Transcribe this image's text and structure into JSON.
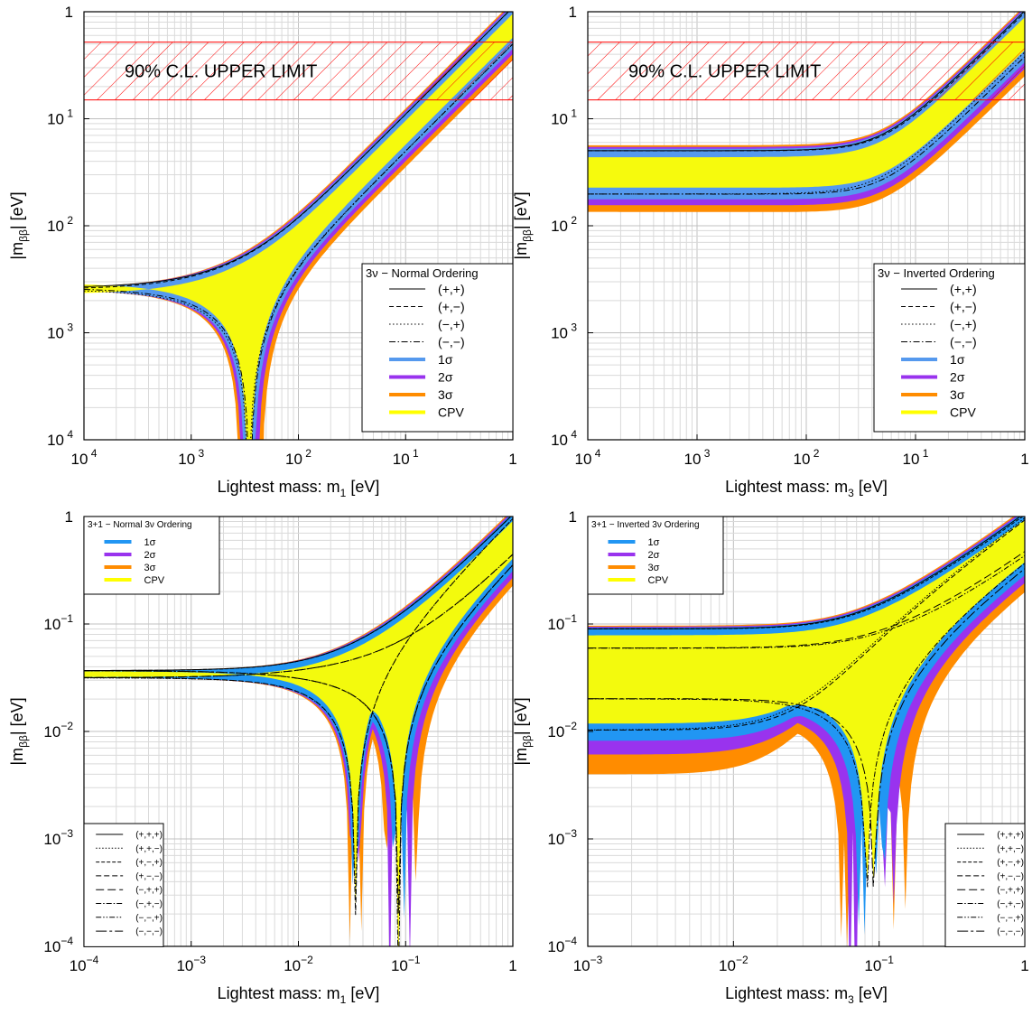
{
  "chart_data": [
    {
      "id": "p1",
      "type": "area",
      "xlabel": "Lightest mass:    m",
      "xsub": "1",
      "xunit": "    [eV]",
      "ylabel": "|m",
      "ysub": "ββ",
      "yunit": "|    [eV]",
      "xscale": "log",
      "yscale": "log",
      "xlim": [
        0.0001,
        1
      ],
      "ylim": [
        0.0001,
        1
      ],
      "xticks": [
        {
          "v": 0.0001,
          "m": "10",
          "e": " 4"
        },
        {
          "v": 0.001,
          "m": "10",
          "e": " 3"
        },
        {
          "v": 0.01,
          "m": "10",
          "e": " 2"
        },
        {
          "v": 0.1,
          "m": "10",
          "e": " 1"
        },
        {
          "v": 1,
          "m": "1",
          "e": ""
        }
      ],
      "yticks": [
        {
          "v": 0.0001,
          "m": "10",
          "e": " 4"
        },
        {
          "v": 0.001,
          "m": "10",
          "e": " 3"
        },
        {
          "v": 0.01,
          "m": "10",
          "e": " 2"
        },
        {
          "v": 0.1,
          "m": "10",
          "e": " 1"
        },
        {
          "v": 1,
          "m": "1",
          "e": ""
        }
      ],
      "limit_band": {
        "label": "90% C.L. UPPER LIMIT",
        "range": [
          0.15,
          0.52
        ]
      },
      "model": {
        "ordering": "normal",
        "a_base": [
          0.8,
          0.3,
          0.0008
        ]
      },
      "legend": {
        "position": "middle-right",
        "title": "3ν − Normal Ordering",
        "lines": [
          {
            "label": "(+,+)",
            "dash": ""
          },
          {
            "label": "(+,−)",
            "dash": "5,3"
          },
          {
            "label": "(−,+)",
            "dash": "1.5,2.5"
          },
          {
            "label": "(−,−)",
            "dash": "7,2.5,1.5,2.5"
          }
        ],
        "bands": [
          {
            "label": "1σ",
            "color": "#5599ee"
          },
          {
            "label": "2σ",
            "color": "#9933ee"
          },
          {
            "label": "3σ",
            "color": "#ff8c00"
          },
          {
            "label": "CPV",
            "color": "#ffff00"
          }
        ]
      }
    },
    {
      "id": "p2",
      "type": "area",
      "xlabel": "Lightest mass:    m",
      "xsub": "3",
      "xunit": "    [eV]",
      "ylabel": "|m",
      "ysub": "ββ",
      "yunit": "|    [eV]",
      "xscale": "log",
      "yscale": "log",
      "xlim": [
        0.0001,
        1
      ],
      "ylim": [
        0.0001,
        1
      ],
      "xticks": [
        {
          "v": 0.0001,
          "m": "10",
          "e": " 4"
        },
        {
          "v": 0.001,
          "m": "10",
          "e": " 3"
        },
        {
          "v": 0.01,
          "m": "10",
          "e": " 2"
        },
        {
          "v": 0.1,
          "m": "10",
          "e": " 1"
        },
        {
          "v": 1,
          "m": "1",
          "e": ""
        }
      ],
      "yticks": [
        {
          "v": 0.0001,
          "m": "10",
          "e": " 4"
        },
        {
          "v": 0.001,
          "m": "10",
          "e": " 3"
        },
        {
          "v": 0.01,
          "m": "10",
          "e": " 2"
        },
        {
          "v": 0.1,
          "m": "10",
          "e": " 1"
        },
        {
          "v": 1,
          "m": "1",
          "e": ""
        }
      ],
      "limit_band": {
        "label": "90% C.L. UPPER LIMIT",
        "range": [
          0.15,
          0.52
        ]
      },
      "model": {
        "ordering": "inverted",
        "a_base": [
          0.7,
          0.3,
          0.02
        ]
      },
      "legend": {
        "position": "middle-right",
        "title": "3ν − Inverted Ordering",
        "lines": [
          {
            "label": "(+,+)",
            "dash": ""
          },
          {
            "label": "(+,−)",
            "dash": "5,3"
          },
          {
            "label": "(−,+)",
            "dash": "1.5,2.5"
          },
          {
            "label": "(−,−)",
            "dash": "7,2.5,1.5,2.5"
          }
        ],
        "bands": [
          {
            "label": "1σ",
            "color": "#5599ee"
          },
          {
            "label": "2σ",
            "color": "#9933ee"
          },
          {
            "label": "3σ",
            "color": "#ff8c00"
          },
          {
            "label": "CPV",
            "color": "#ffff00"
          }
        ]
      }
    },
    {
      "id": "p3",
      "type": "area",
      "xlabel": "Lightest mass:    m",
      "xsub": "1",
      "xunit": "    [eV]",
      "ylabel": "|m",
      "ysub": "ββ",
      "yunit": "|    [eV]",
      "xscale": "log",
      "yscale": "log",
      "xlim": [
        0.0001,
        1
      ],
      "ylim": [
        0.0001,
        1
      ],
      "xticks": [
        {
          "v": 0.0001,
          "m": "10",
          "e": "−4"
        },
        {
          "v": 0.001,
          "m": "10",
          "e": "−3"
        },
        {
          "v": 0.01,
          "m": "10",
          "e": "−2"
        },
        {
          "v": 0.1,
          "m": "10",
          "e": "−1"
        },
        {
          "v": 1,
          "m": "1",
          "e": ""
        }
      ],
      "yticks": [
        {
          "v": 0.0001,
          "m": "10",
          "e": "−4"
        },
        {
          "v": 0.001,
          "m": "10",
          "e": "−3"
        },
        {
          "v": 0.01,
          "m": "10",
          "e": "−2"
        },
        {
          "v": 0.1,
          "m": "10",
          "e": "−1"
        },
        {
          "v": 1,
          "m": "1",
          "e": ""
        }
      ],
      "model": {
        "ordering": "normal31",
        "a_base": [
          0.7,
          0.3,
          0.0008,
          0.03
        ]
      },
      "legend": {
        "position": "top-left",
        "title": "3+1 − Normal 3ν Ordering",
        "bands": [
          {
            "label": "1σ",
            "color": "#2196f3"
          },
          {
            "label": "2σ",
            "color": "#9933ee"
          },
          {
            "label": "3σ",
            "color": "#ff8c00"
          },
          {
            "label": "CPV",
            "color": "#ffff00"
          }
        ]
      },
      "legend2": {
        "position": "bottom-left",
        "lines": [
          {
            "label": "(+,+,+)",
            "dash": ""
          },
          {
            "label": "(+,+,−)",
            "dash": "1.5,2"
          },
          {
            "label": "(+,−,+)",
            "dash": "4,2"
          },
          {
            "label": "(+,−,−)",
            "dash": "6,3"
          },
          {
            "label": "(−,+,+)",
            "dash": "9,4"
          },
          {
            "label": "(−,+,−)",
            "dash": "6,2,1.5,2"
          },
          {
            "label": "(−,−,+)",
            "dash": "6,2,1.5,2,1.5,2"
          },
          {
            "label": "(−,−,−)",
            "dash": "12,3,3,3"
          }
        ]
      }
    },
    {
      "id": "p4",
      "type": "area",
      "xlabel": "Lightest mass:    m",
      "xsub": "3",
      "xunit": "    [eV]",
      "ylabel": "|m",
      "ysub": "ββ",
      "yunit": "|    [eV]",
      "xscale": "log",
      "yscale": "log",
      "xlim": [
        0.001,
        1
      ],
      "ylim": [
        0.0001,
        1
      ],
      "xticks": [
        {
          "v": 0.001,
          "m": "10",
          "e": "−3"
        },
        {
          "v": 0.01,
          "m": "10",
          "e": "−2"
        },
        {
          "v": 0.1,
          "m": "10",
          "e": "−1"
        },
        {
          "v": 1,
          "m": "1",
          "e": ""
        }
      ],
      "yticks": [
        {
          "v": 0.0001,
          "m": "10",
          "e": "−4"
        },
        {
          "v": 0.001,
          "m": "10",
          "e": "−3"
        },
        {
          "v": 0.01,
          "m": "10",
          "e": "−2"
        },
        {
          "v": 0.1,
          "m": "10",
          "e": "−1"
        },
        {
          "v": 1,
          "m": "1",
          "e": ""
        }
      ],
      "model": {
        "ordering": "inverted31",
        "a_base": [
          0.7,
          0.3,
          0.02,
          0.035
        ]
      },
      "legend": {
        "position": "top-left",
        "title": "3+1 − Inverted 3ν Ordering",
        "bands": [
          {
            "label": "1σ",
            "color": "#2196f3"
          },
          {
            "label": "2σ",
            "color": "#9933ee"
          },
          {
            "label": "3σ",
            "color": "#ff8c00"
          },
          {
            "label": "CPV",
            "color": "#ffff00"
          }
        ]
      },
      "legend2": {
        "position": "bottom-right",
        "lines": [
          {
            "label": "(+,+,+)",
            "dash": ""
          },
          {
            "label": "(+,+,−)",
            "dash": "1.5,2"
          },
          {
            "label": "(+,−,+)",
            "dash": "4,2"
          },
          {
            "label": "(+,−,−)",
            "dash": "6,3"
          },
          {
            "label": "(−,+,+)",
            "dash": "9,4"
          },
          {
            "label": "(−,+,−)",
            "dash": "6,2,1.5,2"
          },
          {
            "label": "(−,−,+)",
            "dash": "6,2,1.5,2,1.5,2"
          },
          {
            "label": "(−,−,−)",
            "dash": "12,3,3,3"
          }
        ]
      }
    }
  ]
}
